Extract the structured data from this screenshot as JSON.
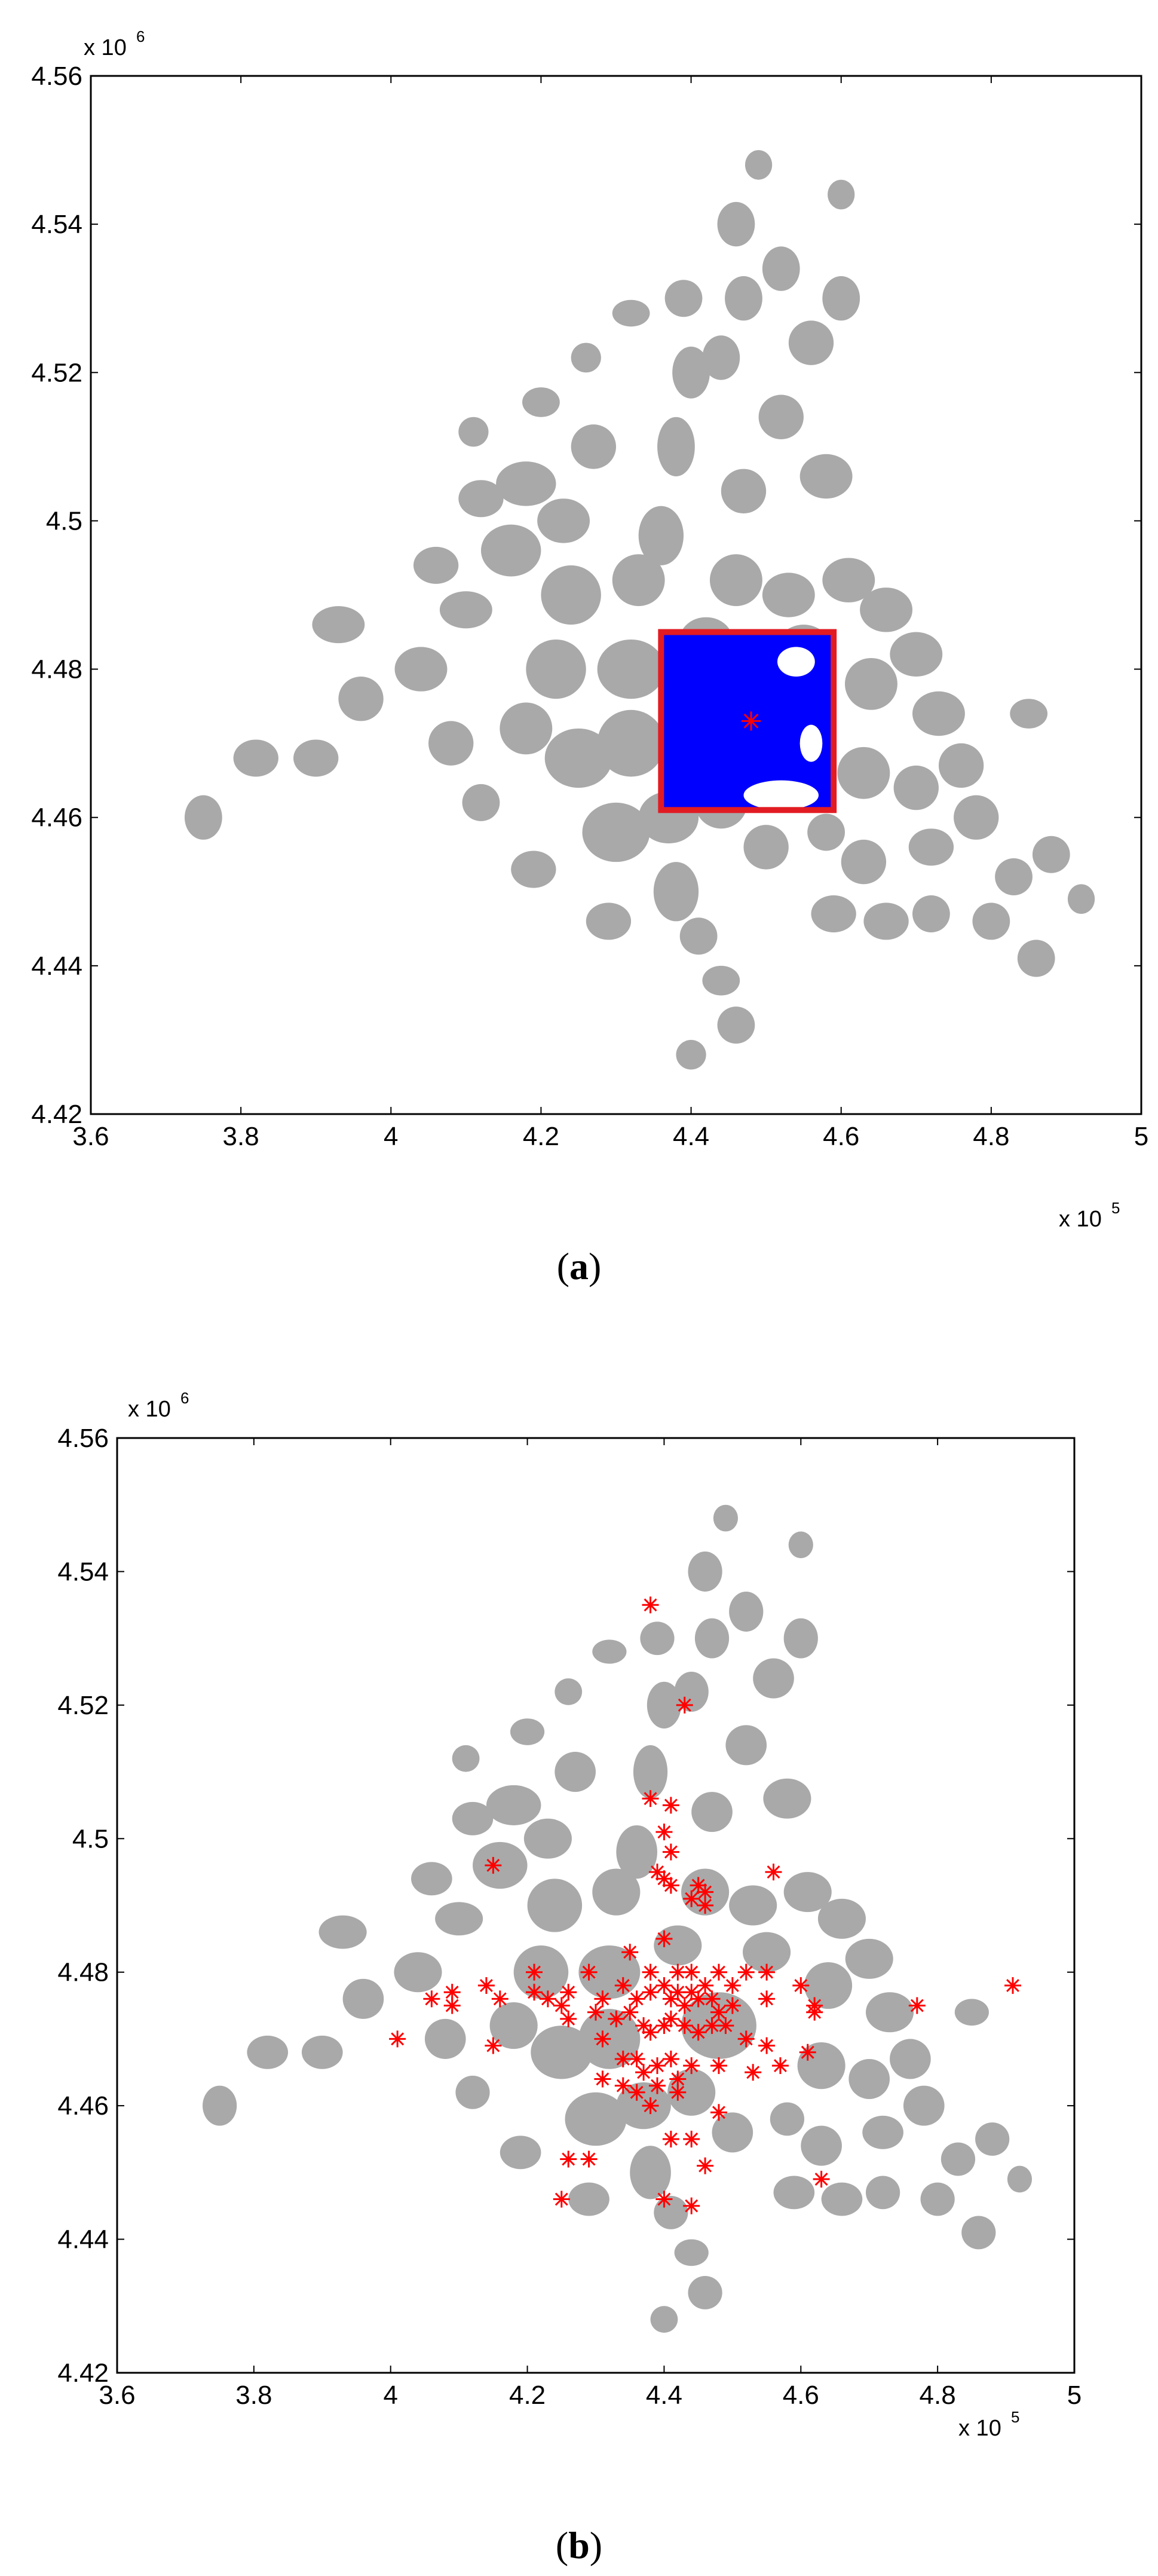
{
  "chart_data": [
    {
      "type": "scatter",
      "caption_open": "(",
      "caption_letter": "a",
      "caption_close": ")",
      "x_multiplier_base": "x 10",
      "x_multiplier_exp": "5",
      "y_multiplier_base": "x 10",
      "y_multiplier_exp": "6",
      "xlim": [
        360000,
        500000
      ],
      "ylim": [
        4420000,
        4560000
      ],
      "xticks": [
        360000,
        380000,
        400000,
        420000,
        440000,
        460000,
        480000,
        500000
      ],
      "xtick_labels": [
        "3.6",
        "3.8",
        "4",
        "4.2",
        "4.4",
        "4.6",
        "4.8",
        "5"
      ],
      "yticks": [
        4420000,
        4440000,
        4460000,
        4480000,
        4500000,
        4520000,
        4540000,
        4560000
      ],
      "ytick_labels": [
        "4.42",
        "4.44",
        "4.46",
        "4.48",
        "4.5",
        "4.52",
        "4.54",
        "4.56"
      ],
      "grid": false,
      "colors": {
        "background_points": "#a9a9a9",
        "selected_region": "#0000ff",
        "box": "#e21b23",
        "marker": "#ff0000"
      },
      "highlight_box": {
        "x": [
          436000,
          459000
        ],
        "y": [
          4461000,
          4485000
        ]
      },
      "center_marker": [
        448000,
        4473000
      ]
    },
    {
      "type": "scatter",
      "caption_open": "(",
      "caption_letter": "b",
      "caption_close": ")",
      "x_multiplier_base": "x 10",
      "x_multiplier_exp": "5",
      "y_multiplier_base": "x 10",
      "y_multiplier_exp": "6",
      "xlim": [
        360000,
        500000
      ],
      "ylim": [
        4420000,
        4560000
      ],
      "xticks": [
        360000,
        380000,
        400000,
        420000,
        440000,
        460000,
        480000,
        500000
      ],
      "xtick_labels": [
        "3.6",
        "3.8",
        "4",
        "4.2",
        "4.4",
        "4.6",
        "4.8",
        "5"
      ],
      "yticks": [
        4420000,
        4440000,
        4460000,
        4480000,
        4500000,
        4520000,
        4540000,
        4560000
      ],
      "ytick_labels": [
        "4.42",
        "4.44",
        "4.46",
        "4.48",
        "4.5",
        "4.52",
        "4.54",
        "4.56"
      ],
      "grid": false,
      "colors": {
        "background_points": "#a9a9a9",
        "marker": "#ff0000"
      },
      "red_points": [
        [
          438000,
          4535000
        ],
        [
          443000,
          4520000
        ],
        [
          438000,
          4506000
        ],
        [
          441000,
          4505000
        ],
        [
          440000,
          4501000
        ],
        [
          441000,
          4498000
        ],
        [
          440000,
          4494000
        ],
        [
          441000,
          4493000
        ],
        [
          445000,
          4493000
        ],
        [
          446000,
          4492000
        ],
        [
          444000,
          4491000
        ],
        [
          446000,
          4490000
        ],
        [
          456000,
          4495000
        ],
        [
          415000,
          4496000
        ],
        [
          439000,
          4495000
        ],
        [
          435000,
          4483000
        ],
        [
          438000,
          4480000
        ],
        [
          440000,
          4485000
        ],
        [
          442000,
          4480000
        ],
        [
          444000,
          4480000
        ],
        [
          446000,
          4478000
        ],
        [
          448000,
          4480000
        ],
        [
          450000,
          4478000
        ],
        [
          452000,
          4480000
        ],
        [
          455000,
          4480000
        ],
        [
          460000,
          4478000
        ],
        [
          421000,
          4480000
        ],
        [
          414000,
          4478000
        ],
        [
          409000,
          4477000
        ],
        [
          406000,
          4476000
        ],
        [
          409000,
          4475000
        ],
        [
          416000,
          4476000
        ],
        [
          421000,
          4477000
        ],
        [
          423000,
          4476000
        ],
        [
          425000,
          4475000
        ],
        [
          426000,
          4477000
        ],
        [
          429000,
          4480000
        ],
        [
          431000,
          4476000
        ],
        [
          434000,
          4478000
        ],
        [
          436000,
          4476000
        ],
        [
          438000,
          4477000
        ],
        [
          440000,
          4478000
        ],
        [
          441000,
          4476000
        ],
        [
          442000,
          4477000
        ],
        [
          443000,
          4475000
        ],
        [
          444000,
          4477000
        ],
        [
          445000,
          4476000
        ],
        [
          447000,
          4476000
        ],
        [
          448000,
          4474000
        ],
        [
          450000,
          4475000
        ],
        [
          455000,
          4476000
        ],
        [
          462000,
          4475000
        ],
        [
          462000,
          4474000
        ],
        [
          477000,
          4475000
        ],
        [
          491000,
          4478000
        ],
        [
          401000,
          4470000
        ],
        [
          415000,
          4469000
        ],
        [
          426000,
          4473000
        ],
        [
          430000,
          4474000
        ],
        [
          433000,
          4473000
        ],
        [
          435000,
          4474000
        ],
        [
          437000,
          4472000
        ],
        [
          438000,
          4471000
        ],
        [
          440000,
          4472000
        ],
        [
          441000,
          4473000
        ],
        [
          443000,
          4472000
        ],
        [
          445000,
          4471000
        ],
        [
          447000,
          4472000
        ],
        [
          449000,
          4472000
        ],
        [
          452000,
          4470000
        ],
        [
          455000,
          4469000
        ],
        [
          461000,
          4468000
        ],
        [
          431000,
          4470000
        ],
        [
          434000,
          4467000
        ],
        [
          436000,
          4467000
        ],
        [
          437000,
          4465000
        ],
        [
          439000,
          4466000
        ],
        [
          441000,
          4467000
        ],
        [
          442000,
          4464000
        ],
        [
          444000,
          4466000
        ],
        [
          448000,
          4466000
        ],
        [
          453000,
          4465000
        ],
        [
          457000,
          4466000
        ],
        [
          431000,
          4464000
        ],
        [
          434000,
          4463000
        ],
        [
          436000,
          4462000
        ],
        [
          438000,
          4460000
        ],
        [
          439000,
          4463000
        ],
        [
          442000,
          4462000
        ],
        [
          448000,
          4459000
        ],
        [
          441000,
          4455000
        ],
        [
          444000,
          4455000
        ],
        [
          426000,
          4452000
        ],
        [
          429000,
          4452000
        ],
        [
          446000,
          4451000
        ],
        [
          463000,
          4449000
        ],
        [
          425000,
          4446000
        ],
        [
          440000,
          4446000
        ],
        [
          444000,
          4445000
        ]
      ]
    }
  ]
}
